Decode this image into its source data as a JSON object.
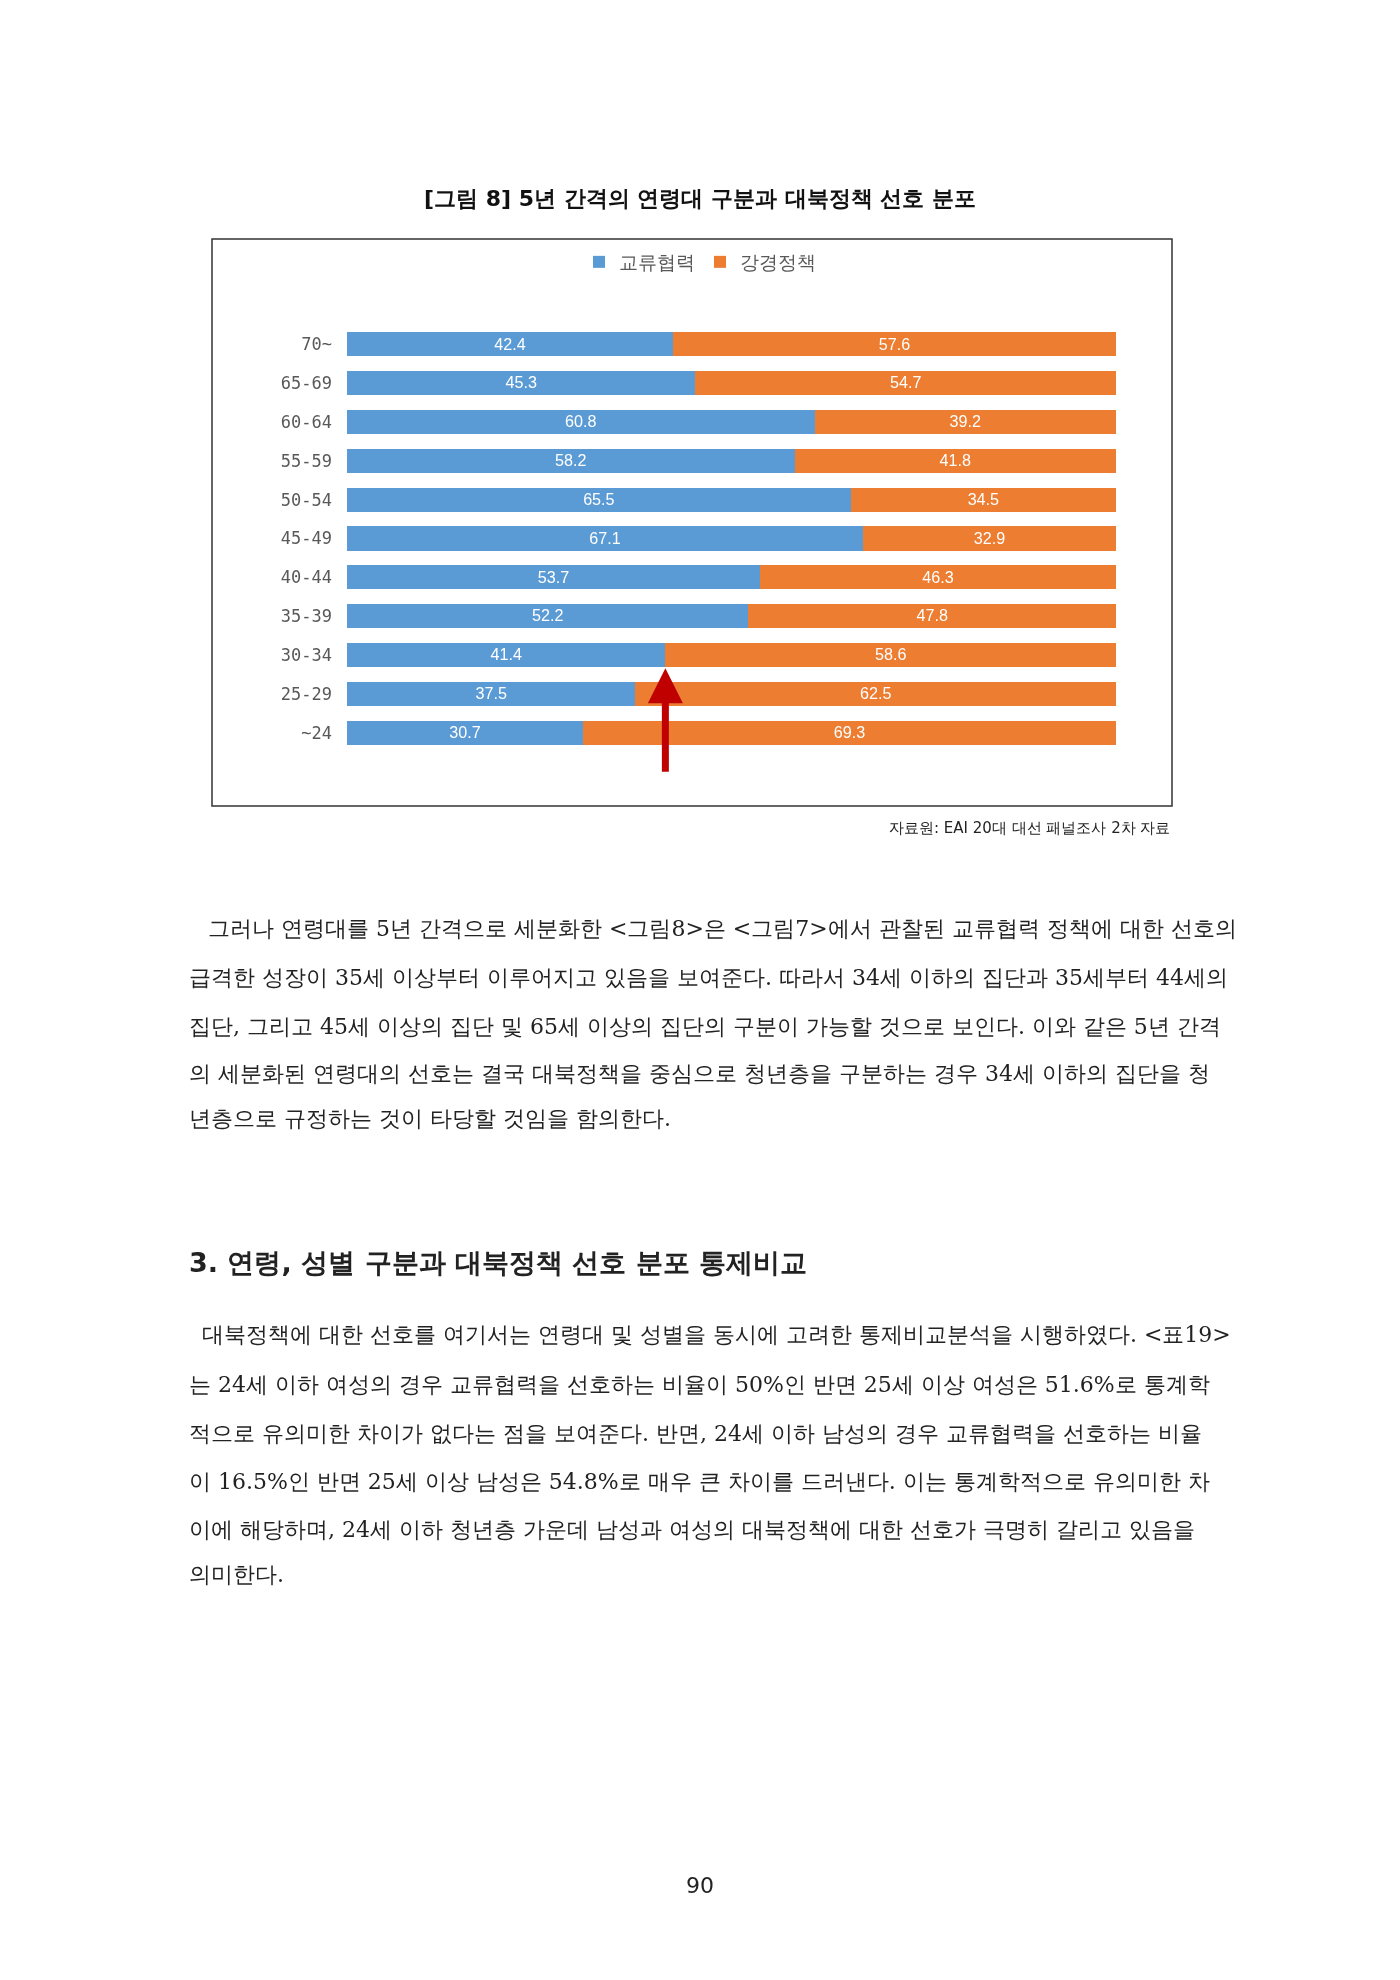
{
  "chart_data": {
    "type": "bar",
    "orientation": "horizontal",
    "stacked": true,
    "title": "[그림 8] 5년 간격의 연령대 구분과 대북정책 선호 분포",
    "categories": [
      "70~",
      "65-69",
      "60-64",
      "55-59",
      "50-54",
      "45-49",
      "40-44",
      "35-39",
      "30-34",
      "25-29",
      "~24"
    ],
    "series": [
      {
        "name": "교류협력",
        "color": "#5b9bd5",
        "values": [
          42.4,
          45.3,
          60.8,
          58.2,
          65.5,
          67.1,
          53.7,
          52.2,
          41.4,
          37.5,
          30.7
        ]
      },
      {
        "name": "강경정책",
        "color": "#ed7d31",
        "values": [
          57.6,
          54.7,
          39.2,
          41.8,
          34.5,
          32.9,
          46.3,
          47.8,
          58.6,
          62.5,
          69.3
        ]
      }
    ],
    "xlim": [
      0,
      100
    ],
    "tick_labels": "y",
    "data_labels": true,
    "legend": "top",
    "annotations": [
      "자료원: EAI 20대 대선 패널조사 2차 자료",
      "그러나 연령대를 5년 간격으로 세분화한 <그림8>은 <그림7>에서 관찰된 교류협력 정책에 대한 선호의",
      "급격한 성장이 35세 이상부터 이루어지고 있음을 보여준다. 따라서 34세 이하의 집단과 35세부터 44세의",
      "집단, 그리고 45세 이상의 집단 및 65세 이상의 집단의 구분이 가능할 것으로 보인다. 이와 같은 5년 간격",
      "의 세분화된 연령대의 선호는 결국 대북정책을 중심으로 청년층을 구분하는 경우 34세 이하의 집단을 청",
      "년층으로 규정하는 것이 타당할 것임을 함의한다.",
      "3. 연령, 성별 구분과 대북정책 선호 분포 통제비교",
      "대북정책에 대한 선호를 여기서는 연령대 및 성별을 동시에 고려한 통제비교분석을 시행하였다. <표19>",
      "는 24세 이하 여성의 경우 교류협력을 선호하는 비율이 50%인 반면 25세 이상 여성은 51.6%로 통계학",
      "적으로 유의미한 차이가 없다는 점을 보여준다. 반면, 24세 이하 남성의 경우 교류협력을 선호하는 비율",
      "이 16.5%인 반면 25세 이상 남성은 54.8%로 매우 큰 차이를 드러낸다. 이는 통계학적으로 유의미한 차",
      "이에 해당하며, 24세 이하 청년층 가운데 남성과 여성의 대북정책에 대한 선호가 극명히 갈리고 있음을",
      "의미한다.",
      "90"
    ]
  }
}
